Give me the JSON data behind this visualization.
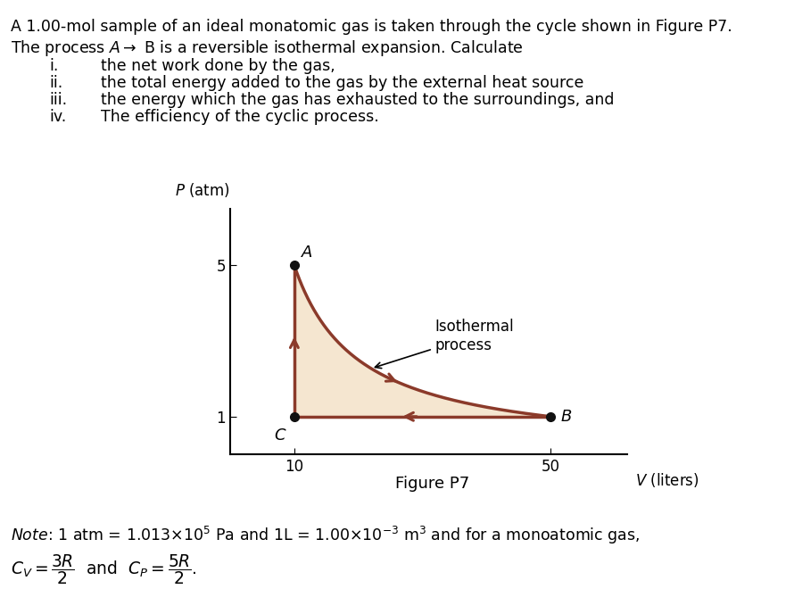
{
  "fig_width": 8.9,
  "fig_height": 6.88,
  "dpi": 100,
  "bg_color": "#ffffff",
  "text_color": "#000000",
  "arrow_color": "#8B3A2A",
  "fill_color": "#F5E6D0",
  "point_color": "#111111",
  "A": [
    10,
    5
  ],
  "B": [
    50,
    1
  ],
  "C": [
    10,
    1
  ],
  "isotherm_k": 50,
  "xlim": [
    0,
    62
  ],
  "ylim": [
    0,
    6.5
  ],
  "xticks": [
    10,
    50
  ],
  "yticks": [
    1,
    5
  ],
  "isothermal_label": "Isothermal\nprocess",
  "font_size_body": 12.5,
  "font_size_axis": 12,
  "font_size_caption": 13
}
